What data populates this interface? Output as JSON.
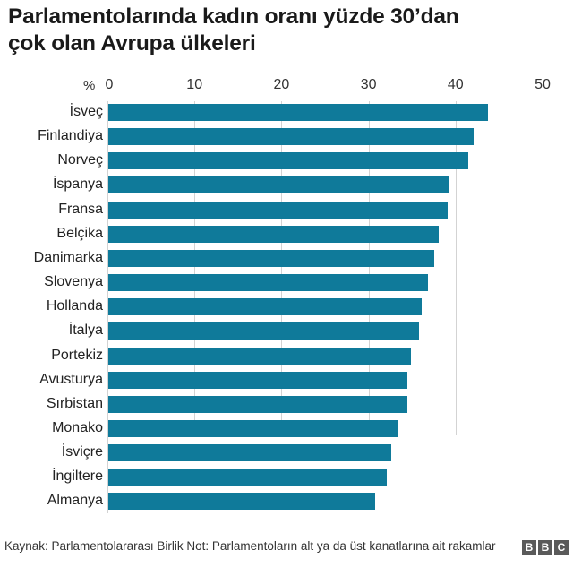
{
  "title": {
    "line1": "Parlamentolarında kadın oranı yüzde 30’dan",
    "line2": "çok olan Avrupa ülkeleri"
  },
  "axis": {
    "unit": "%",
    "ticks": [
      "0",
      "10",
      "20",
      "30",
      "40",
      "50"
    ]
  },
  "colors": {
    "bar": "#0f7a9a",
    "grid": "#d3d3d3",
    "logo": "#5a5a5a"
  },
  "footer": {
    "text": "Kaynak: Parlamentolararası Birlik Not: Parlamentoların alt ya da üst kanatlarına ait rakamlar",
    "logo_letters": [
      "B",
      "B",
      "C"
    ]
  },
  "chart_data": {
    "type": "bar",
    "orientation": "horizontal",
    "title": "Parlamentolarında kadın oranı yüzde 30’dan çok olan Avrupa ülkeleri",
    "xlabel": "%",
    "ylabel": "",
    "xlim": [
      0,
      50
    ],
    "xticks": [
      0,
      10,
      20,
      30,
      40,
      50
    ],
    "grid": true,
    "legend": null,
    "categories": [
      "İsveç",
      "Finlandiya",
      "Norveç",
      "İspanya",
      "Fransa",
      "Belçika",
      "Danimarka",
      "Slovenya",
      "Hollanda",
      "İtalya",
      "Portekiz",
      "Avusturya",
      "Sırbistan",
      "Monako",
      "İsviçre",
      "İngiltere",
      "Almanya"
    ],
    "values": [
      43.6,
      42.0,
      41.4,
      39.1,
      39.0,
      38.0,
      37.4,
      36.7,
      36.0,
      35.7,
      34.8,
      34.4,
      34.4,
      33.3,
      32.5,
      32.0,
      30.7
    ],
    "source": "Kaynak: Parlamentolararası Birlik",
    "note": "Not: Parlamentoların alt ya da üst kanatlarına ait rakamlar"
  }
}
